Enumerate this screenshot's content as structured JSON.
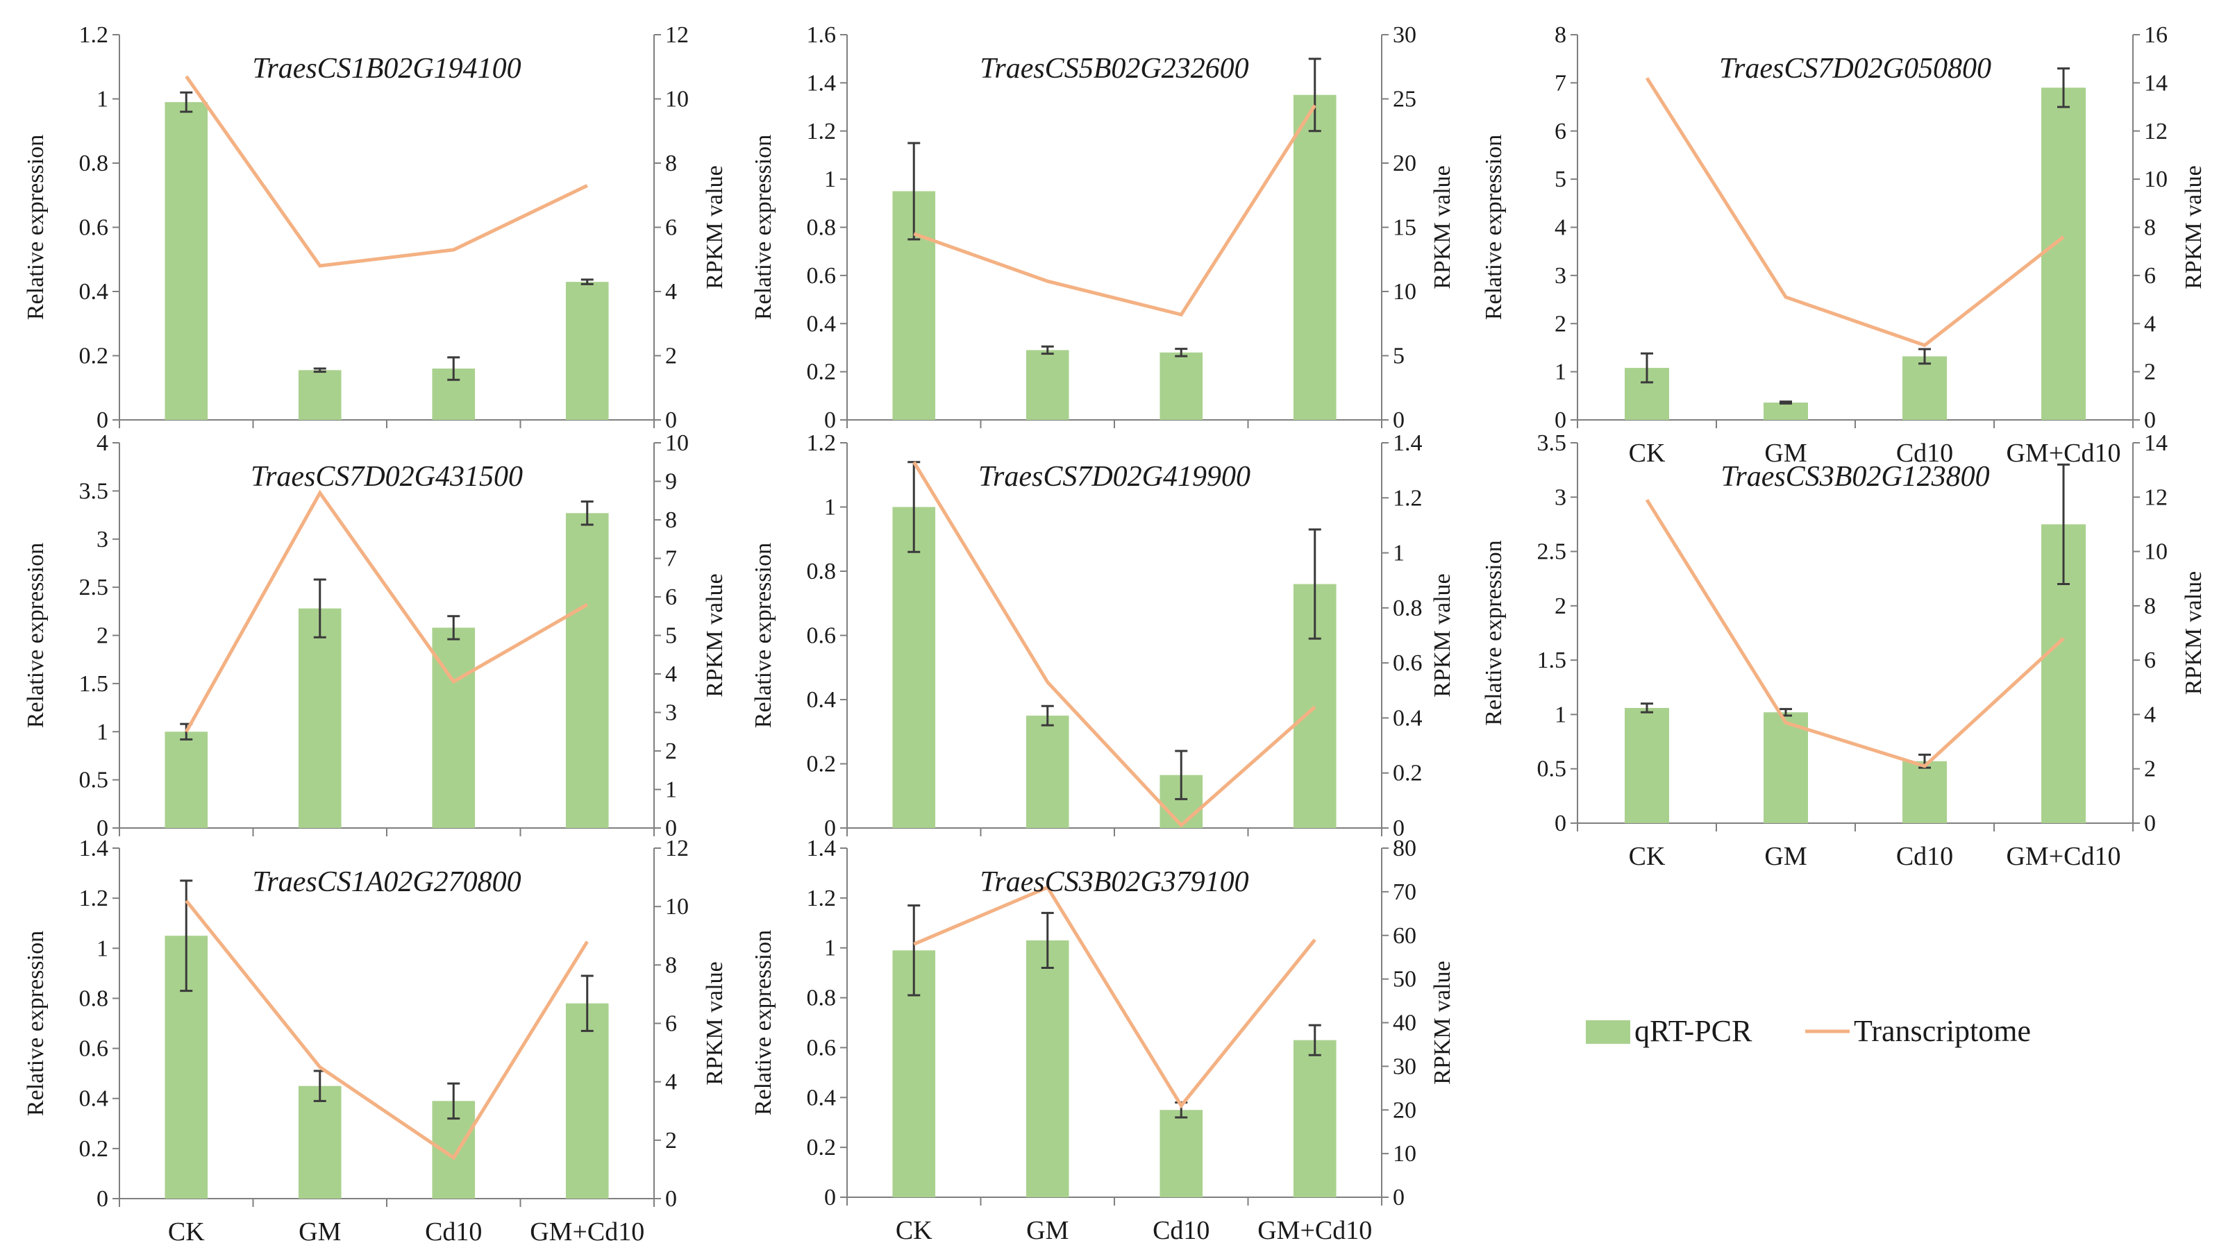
{
  "legend": {
    "bar_label": "qRT-PCR",
    "line_label": "Transcriptome"
  },
  "colors": {
    "bar": "#a9d18e",
    "line": "#f4b183",
    "axis": "#7f7f7f",
    "error": "#3a3a3a"
  },
  "chart_data": [
    {
      "type": "bar",
      "title": "TraesCS1B02G194100",
      "categories": [
        "CK",
        "GM",
        "Cd10",
        "GM+Cd10"
      ],
      "ylabel": "Relative expression",
      "y2label": "RPKM value",
      "ylim": [
        0,
        1.2
      ],
      "yticks": [
        0,
        0.2,
        0.4,
        0.6,
        0.8,
        1,
        1.2
      ],
      "y2lim": [
        0,
        12
      ],
      "y2ticks": [
        0,
        2,
        4,
        6,
        8,
        10,
        12
      ],
      "series": [
        {
          "name": "qRT-PCR",
          "axis": "left",
          "values": [
            0.99,
            0.155,
            0.16,
            0.43
          ],
          "errors": [
            0.03,
            0.005,
            0.035,
            0.007
          ]
        },
        {
          "name": "Transcriptome",
          "axis": "right",
          "values": [
            10.7,
            4.8,
            5.3,
            7.3
          ]
        }
      ]
    },
    {
      "type": "bar",
      "title": "TraesCS5B02G232600",
      "categories": [
        "CK",
        "GM",
        "Cd10",
        "GM+Cd10"
      ],
      "ylabel": "Relative expression",
      "y2label": "RPKM value",
      "ylim": [
        0,
        1.6
      ],
      "yticks": [
        0,
        0.2,
        0.4,
        0.6,
        0.8,
        1,
        1.2,
        1.4,
        1.6
      ],
      "y2lim": [
        0,
        30
      ],
      "y2ticks": [
        0,
        5,
        10,
        15,
        20,
        25,
        30
      ],
      "series": [
        {
          "name": "qRT-PCR",
          "axis": "left",
          "values": [
            0.95,
            0.29,
            0.28,
            1.35
          ],
          "errors": [
            0.2,
            0.015,
            0.015,
            0.15
          ]
        },
        {
          "name": "Transcriptome",
          "axis": "right",
          "values": [
            14.5,
            10.8,
            8.2,
            24.5
          ]
        }
      ]
    },
    {
      "type": "bar",
      "title": "TraesCS7D02G050800",
      "categories": [
        "CK",
        "GM",
        "Cd10",
        "GM+Cd10"
      ],
      "ylabel": "Relative expression",
      "y2label": "RPKM value",
      "ylim": [
        0,
        8
      ],
      "yticks": [
        0,
        1,
        2,
        3,
        4,
        5,
        6,
        7,
        8
      ],
      "y2lim": [
        0,
        16
      ],
      "y2ticks": [
        0,
        2,
        4,
        6,
        8,
        10,
        12,
        14,
        16
      ],
      "series": [
        {
          "name": "qRT-PCR",
          "axis": "left",
          "values": [
            1.08,
            0.36,
            1.32,
            6.9
          ],
          "errors": [
            0.3,
            0.02,
            0.15,
            0.4
          ]
        },
        {
          "name": "Transcriptome",
          "axis": "right",
          "values": [
            14.2,
            5.1,
            3.1,
            7.6
          ]
        }
      ]
    },
    {
      "type": "bar",
      "title": "TraesCS7D02G431500",
      "categories": [
        "CK",
        "GM",
        "Cd10",
        "GM+Cd10"
      ],
      "ylabel": "Relative expression",
      "y2label": "RPKM value",
      "ylim": [
        0,
        4
      ],
      "yticks": [
        0,
        0.5,
        1,
        1.5,
        2,
        2.5,
        3,
        3.5,
        4
      ],
      "y2lim": [
        0,
        10
      ],
      "y2ticks": [
        0,
        1,
        2,
        3,
        4,
        5,
        6,
        7,
        8,
        9,
        10
      ],
      "series": [
        {
          "name": "qRT-PCR",
          "axis": "left",
          "values": [
            1.0,
            2.28,
            2.08,
            3.27
          ],
          "errors": [
            0.08,
            0.3,
            0.12,
            0.12
          ]
        },
        {
          "name": "Transcriptome",
          "axis": "right",
          "values": [
            2.5,
            8.7,
            3.8,
            5.8
          ]
        }
      ]
    },
    {
      "type": "bar",
      "title": "TraesCS7D02G419900",
      "categories": [
        "CK",
        "GM",
        "Cd10",
        "GM+Cd10"
      ],
      "ylabel": "Relative expression",
      "y2label": "RPKM value",
      "ylim": [
        0,
        1.2
      ],
      "yticks": [
        0,
        0.2,
        0.4,
        0.6,
        0.8,
        1,
        1.2
      ],
      "y2lim": [
        0,
        1.4
      ],
      "y2ticks": [
        0,
        0.2,
        0.4,
        0.6,
        0.8,
        1,
        1.2,
        1.4
      ],
      "series": [
        {
          "name": "qRT-PCR",
          "axis": "left",
          "values": [
            1.0,
            0.35,
            0.165,
            0.76
          ],
          "errors": [
            0.14,
            0.03,
            0.075,
            0.17
          ]
        },
        {
          "name": "Transcriptome",
          "axis": "right",
          "values": [
            1.33,
            0.53,
            0.01,
            0.44
          ]
        }
      ]
    },
    {
      "type": "bar",
      "title": "TraesCS3B02G123800",
      "categories": [
        "CK",
        "GM",
        "Cd10",
        "GM+Cd10"
      ],
      "ylabel": "Relative expression",
      "y2label": "RPKM value",
      "ylim": [
        0,
        3.5
      ],
      "yticks": [
        0,
        0.5,
        1,
        1.5,
        2,
        2.5,
        3,
        3.5
      ],
      "y2lim": [
        0,
        14
      ],
      "y2ticks": [
        0,
        2,
        4,
        6,
        8,
        10,
        12,
        14
      ],
      "series": [
        {
          "name": "qRT-PCR",
          "axis": "left",
          "values": [
            1.06,
            1.02,
            0.57,
            2.75
          ],
          "errors": [
            0.04,
            0.03,
            0.06,
            0.55
          ]
        },
        {
          "name": "Transcriptome",
          "axis": "right",
          "values": [
            11.9,
            3.7,
            2.1,
            6.8
          ]
        }
      ]
    },
    {
      "type": "bar",
      "title": "TraesCS1A02G270800",
      "categories": [
        "CK",
        "GM",
        "Cd10",
        "GM+Cd10"
      ],
      "ylabel": "Relative expression",
      "y2label": "RPKM value",
      "ylim": [
        0,
        1.4
      ],
      "yticks": [
        0,
        0.2,
        0.4,
        0.6,
        0.8,
        1,
        1.2,
        1.4
      ],
      "y2lim": [
        0,
        12
      ],
      "y2ticks": [
        0,
        2,
        4,
        6,
        8,
        10,
        12
      ],
      "series": [
        {
          "name": "qRT-PCR",
          "axis": "left",
          "values": [
            1.05,
            0.45,
            0.39,
            0.78
          ],
          "errors": [
            0.22,
            0.06,
            0.07,
            0.11
          ]
        },
        {
          "name": "Transcriptome",
          "axis": "right",
          "values": [
            10.2,
            4.5,
            1.4,
            8.8
          ]
        }
      ]
    },
    {
      "type": "bar",
      "title": "TraesCS3B02G379100",
      "categories": [
        "CK",
        "GM",
        "Cd10",
        "GM+Cd10"
      ],
      "ylabel": "Relative expression",
      "y2label": "RPKM value",
      "ylim": [
        0,
        1.4
      ],
      "yticks": [
        0,
        0.2,
        0.4,
        0.6,
        0.8,
        1,
        1.2,
        1.4
      ],
      "y2lim": [
        0,
        80
      ],
      "y2ticks": [
        0,
        10,
        20,
        30,
        40,
        50,
        60,
        70,
        80
      ],
      "series": [
        {
          "name": "qRT-PCR",
          "axis": "left",
          "values": [
            0.99,
            1.03,
            0.35,
            0.63
          ],
          "errors": [
            0.18,
            0.11,
            0.03,
            0.06
          ]
        },
        {
          "name": "Transcriptome",
          "axis": "right",
          "values": [
            58,
            71,
            21,
            59
          ]
        }
      ]
    }
  ]
}
